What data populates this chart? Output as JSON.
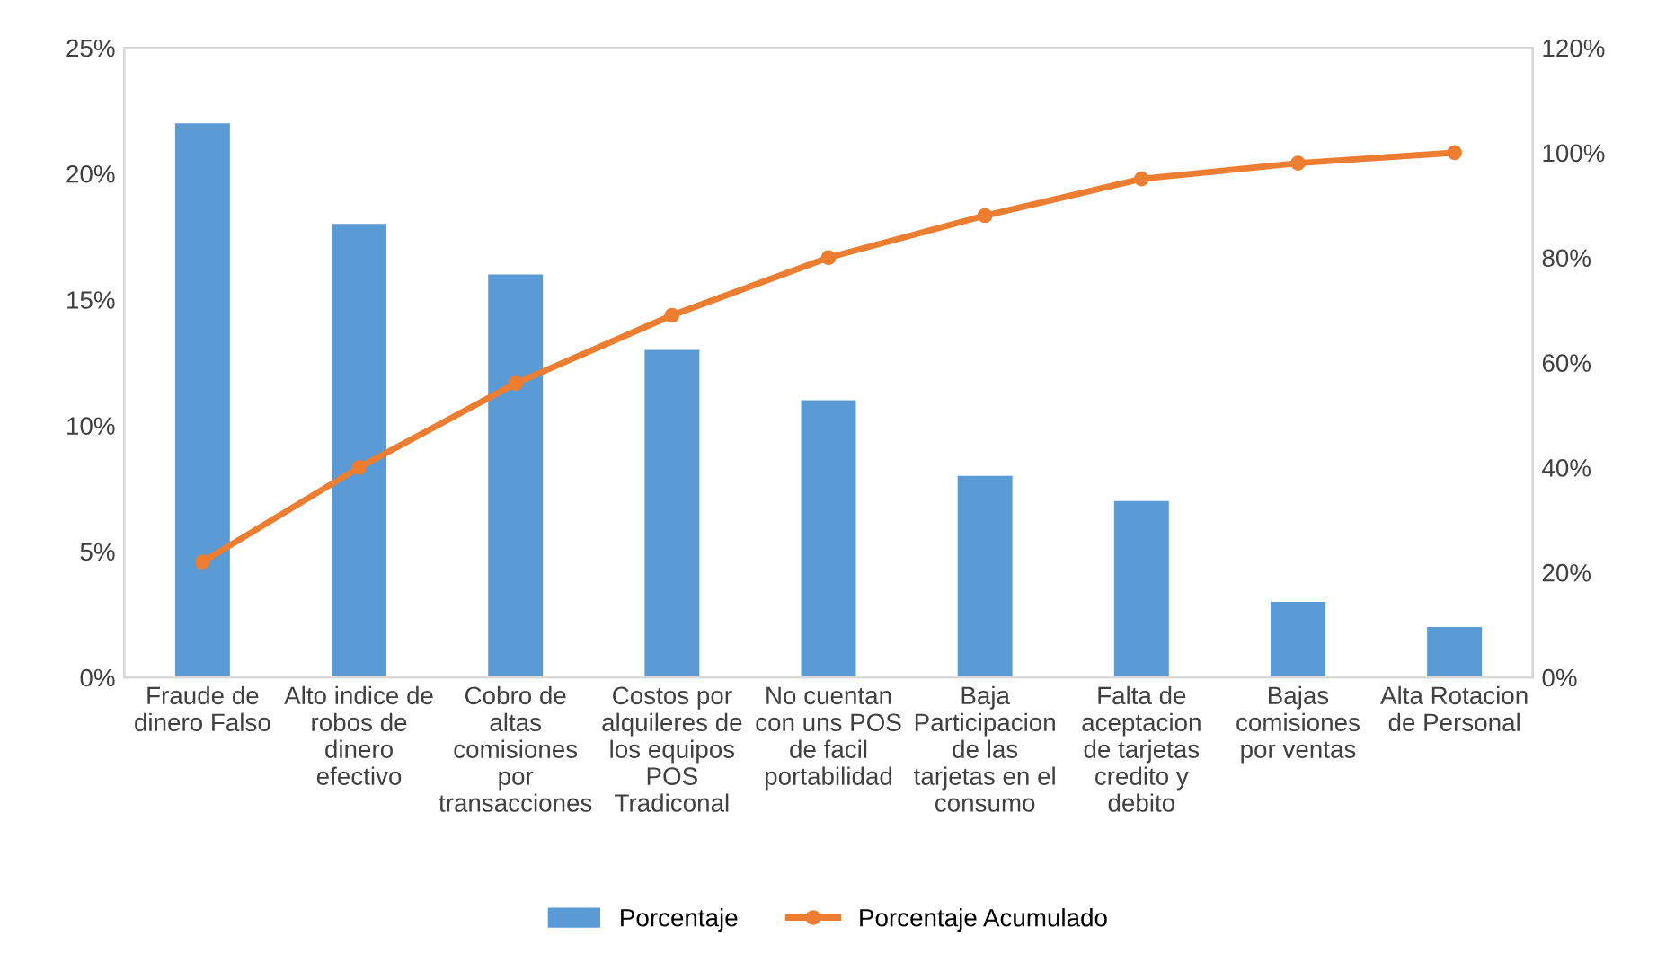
{
  "chart_data": {
    "type": "bar",
    "categories": [
      "Fraude de\ndinero Falso",
      "Alto indice de\nrobos de\ndinero\nefectivo",
      "Cobro de\naltas\ncomisiones\npor\ntransacciones",
      "Costos por\nalquileres de\nlos equipos\nPOS\nTradiconal",
      "No cuentan\ncon uns POS\nde facil\nportabilidad",
      "Baja\nParticipacion\nde las\ntarjetas en el\nconsumo",
      "Falta de\naceptacion\nde tarjetas\ncredito y\ndebito",
      "Bajas\ncomisiones\npor ventas",
      "Alta Rotacion\nde Personal"
    ],
    "series": [
      {
        "name": "Porcentaje",
        "color": "#5b9bd5",
        "values": [
          22,
          18,
          16,
          13,
          11,
          8,
          7,
          3,
          2
        ]
      },
      {
        "name": "Porcentaje Acumulado",
        "type": "line",
        "axis": "y2",
        "color": "#ed7d31",
        "marker": "circle",
        "values": [
          22,
          40,
          56,
          69,
          80,
          88,
          95,
          98,
          100
        ]
      }
    ],
    "ylim": [
      0,
      25
    ],
    "yticks": [
      {
        "value": 0,
        "label": "0%"
      },
      {
        "value": 5,
        "label": "5%"
      },
      {
        "value": 10,
        "label": "10%"
      },
      {
        "value": 15,
        "label": "15%"
      },
      {
        "value": 20,
        "label": "20%"
      },
      {
        "value": 25,
        "label": "25%"
      }
    ],
    "y2lim": [
      0,
      120
    ],
    "y2ticks": [
      {
        "value": 0,
        "label": "0%"
      },
      {
        "value": 20,
        "label": "20%"
      },
      {
        "value": 40,
        "label": "40%"
      },
      {
        "value": 60,
        "label": "60%"
      },
      {
        "value": 80,
        "label": "80%"
      },
      {
        "value": 100,
        "label": "100%"
      },
      {
        "value": 120,
        "label": "120%"
      }
    ],
    "grid": false,
    "legend": "bottom"
  }
}
